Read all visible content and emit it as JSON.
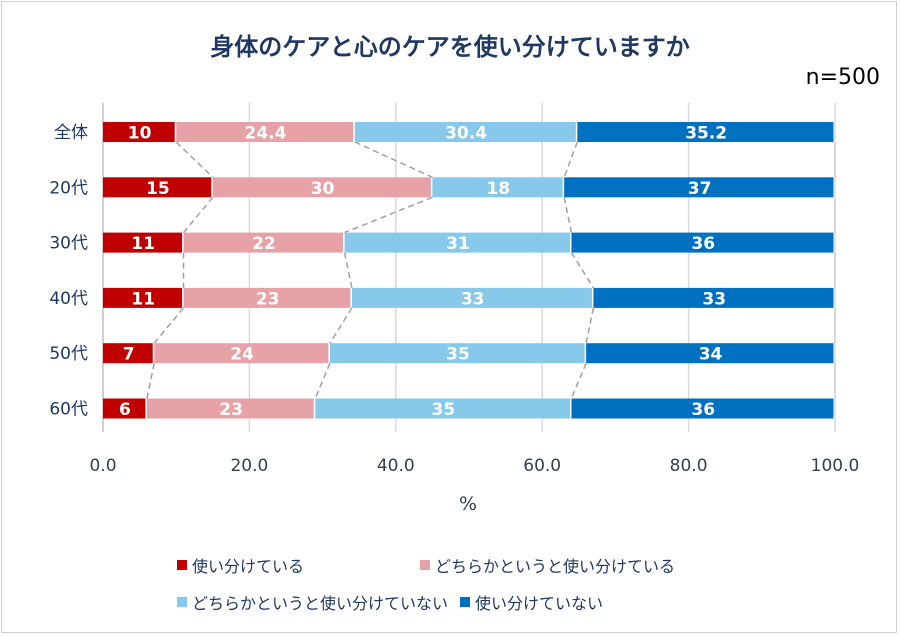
{
  "chart_data": {
    "type": "bar",
    "orientation": "horizontal",
    "stacked": true,
    "title": "身体のケアと心のケアを使い分けていますか",
    "subtitle": "n=500",
    "xlabel": "%",
    "ylabel": "",
    "xlim": [
      0,
      100
    ],
    "xticks": [
      "0.0",
      "20.0",
      "40.0",
      "60.0",
      "80.0",
      "100.0"
    ],
    "grid": true,
    "legend_position": "bottom",
    "categories": [
      "全体",
      "20代",
      "30代",
      "40代",
      "50代",
      "60代"
    ],
    "series": [
      {
        "name": "使い分けている",
        "color": "#C00000",
        "label_color": "#FFFFFF",
        "values": [
          10.0,
          15.0,
          11.0,
          11.0,
          7.0,
          6.0
        ]
      },
      {
        "name": "どちらかというと使い分けている",
        "color": "#E6A2A6",
        "label_color": "#FFFFFF",
        "values": [
          24.4,
          30.0,
          22.0,
          23.0,
          24.0,
          23.0
        ]
      },
      {
        "name": "どちらかというと使い分けていない",
        "color": "#86C9EB",
        "label_color": "#FFFFFF",
        "values": [
          30.4,
          18.0,
          31.0,
          33.0,
          35.0,
          35.0
        ]
      },
      {
        "name": "使い分けていない",
        "color": "#0070C0",
        "label_color": "#FFFFFF",
        "values": [
          35.2,
          37.0,
          36.0,
          33.0,
          34.0,
          36.0
        ]
      }
    ],
    "series_lines": true
  }
}
